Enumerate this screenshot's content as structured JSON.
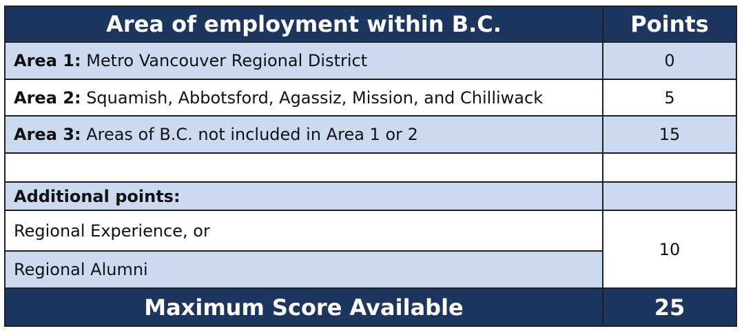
{
  "header": {
    "area_title": "Area of employment within B.C.",
    "points_title": "Points"
  },
  "rows": [
    {
      "label": "Area 1:",
      "desc": "Metro Vancouver Regional District",
      "points": "0"
    },
    {
      "label": "Area 2:",
      "desc": "Squamish, Abbotsford, Agassiz, Mission, and Chilliwack",
      "points": "5"
    },
    {
      "label": "Area 3:",
      "desc": "Areas of B.C. not included in Area 1 or 2",
      "points": "15"
    }
  ],
  "additional": {
    "title": "Additional points:",
    "items": [
      "Regional Experience, or",
      "Regional Alumni"
    ],
    "points": "10"
  },
  "footer": {
    "label": "Maximum Score Available",
    "points": "25"
  },
  "colors": {
    "header_bg": "#1c3660",
    "row_blue": "#ccdaf0",
    "border": "#1c1f26"
  }
}
